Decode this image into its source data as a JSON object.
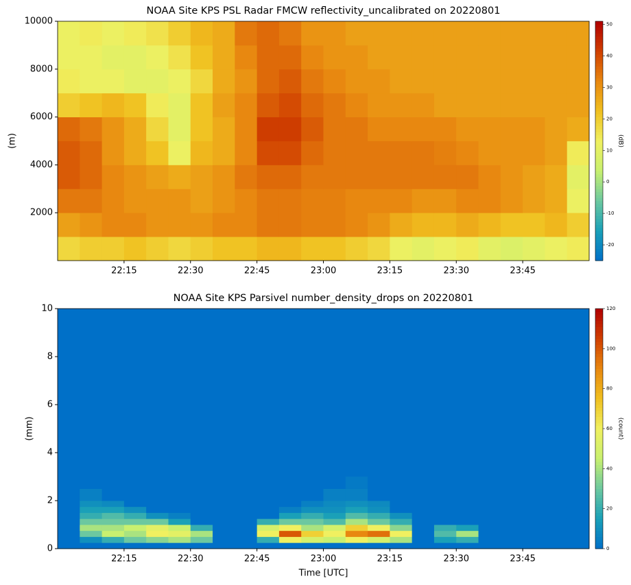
{
  "chart_data": [
    {
      "type": "heatmap",
      "title": "NOAA Site KPS PSL Radar FMCW reflectivity_uncalibrated on 20220801",
      "ylabel": "(m)",
      "x_bins": [
        0,
        5,
        10,
        15,
        20,
        25,
        30,
        35,
        40,
        45,
        50,
        55,
        60,
        65,
        70,
        75,
        80,
        85,
        90,
        95,
        100,
        105,
        110,
        115,
        120
      ],
      "y_bins": [
        0,
        1000,
        2000,
        3000,
        4000,
        5000,
        6000,
        7000,
        8000,
        9000,
        10000
      ],
      "values": [
        [
          18,
          20,
          20,
          22,
          20,
          18,
          20,
          22,
          22,
          24,
          24,
          22,
          22,
          20,
          18,
          12,
          10,
          12,
          14,
          10,
          8,
          10,
          12,
          14
        ],
        [
          28,
          30,
          32,
          32,
          30,
          30,
          30,
          32,
          32,
          34,
          34,
          33,
          33,
          32,
          30,
          26,
          24,
          24,
          26,
          24,
          22,
          22,
          24,
          20
        ],
        [
          34,
          34,
          32,
          30,
          30,
          30,
          28,
          30,
          32,
          34,
          34,
          33,
          33,
          32,
          32,
          32,
          30,
          30,
          32,
          32,
          30,
          28,
          26,
          12
        ],
        [
          38,
          36,
          32,
          30,
          28,
          26,
          28,
          30,
          34,
          36,
          36,
          34,
          34,
          34,
          34,
          34,
          34,
          34,
          34,
          32,
          30,
          28,
          26,
          10
        ],
        [
          38,
          36,
          30,
          26,
          22,
          12,
          24,
          26,
          32,
          40,
          40,
          36,
          34,
          34,
          34,
          34,
          34,
          33,
          32,
          30,
          30,
          30,
          28,
          14
        ],
        [
          36,
          34,
          30,
          26,
          18,
          10,
          22,
          26,
          32,
          42,
          42,
          38,
          34,
          34,
          32,
          32,
          32,
          32,
          30,
          30,
          30,
          30,
          28,
          26
        ],
        [
          20,
          22,
          24,
          22,
          14,
          10,
          22,
          28,
          32,
          38,
          40,
          36,
          34,
          32,
          30,
          30,
          30,
          28,
          28,
          28,
          28,
          28,
          28,
          28
        ],
        [
          14,
          12,
          12,
          10,
          10,
          12,
          18,
          26,
          30,
          36,
          38,
          34,
          32,
          30,
          30,
          28,
          28,
          28,
          28,
          28,
          28,
          28,
          28,
          28
        ],
        [
          12,
          12,
          10,
          10,
          12,
          16,
          22,
          26,
          32,
          36,
          36,
          32,
          30,
          30,
          28,
          28,
          28,
          28,
          28,
          28,
          28,
          28,
          28,
          28
        ],
        [
          12,
          14,
          12,
          14,
          16,
          20,
          24,
          26,
          34,
          36,
          34,
          30,
          30,
          28,
          28,
          28,
          28,
          28,
          28,
          28,
          28,
          28,
          28,
          28
        ]
      ],
      "xlim": [
        0,
        120
      ],
      "xticks": [
        {
          "value": 15,
          "label": "22:15"
        },
        {
          "value": 30,
          "label": "22:30"
        },
        {
          "value": 45,
          "label": "22:45"
        },
        {
          "value": 60,
          "label": "23:00"
        },
        {
          "value": 75,
          "label": "23:15"
        },
        {
          "value": 90,
          "label": "23:30"
        },
        {
          "value": 105,
          "label": "23:45"
        }
      ],
      "ylim": [
        0,
        10000
      ],
      "yticks": [
        2000,
        4000,
        6000,
        8000,
        10000
      ],
      "colorbar": {
        "label": "(dB)",
        "clim": [
          -25,
          51
        ],
        "ticks": [
          -20,
          -10,
          0,
          10,
          20,
          30,
          40,
          50
        ]
      },
      "colormap": [
        "#0070c8",
        "#1aa0b8",
        "#6cc8a0",
        "#c8f070",
        "#f0f060",
        "#f0c020",
        "#e88810",
        "#d04000",
        "#b00000"
      ]
    },
    {
      "type": "heatmap",
      "title": "NOAA Site KPS Parsivel number_density_drops on 20220801",
      "ylabel": "(mm)",
      "xlabel": "Time [UTC]",
      "x_bins": [
        0,
        5,
        10,
        15,
        20,
        25,
        30,
        35,
        40,
        45,
        50,
        55,
        60,
        65,
        70,
        75,
        80,
        85,
        90,
        95,
        100,
        105,
        110,
        115,
        120
      ],
      "y_bins": [
        0,
        0.25,
        0.5,
        0.75,
        1,
        1.25,
        1.5,
        1.75,
        2,
        2.5,
        3
      ],
      "values": [
        [
          0,
          0,
          0,
          0,
          0,
          0,
          0,
          0,
          0,
          0,
          0,
          0,
          0,
          0,
          0,
          0,
          0,
          0,
          0,
          0,
          0,
          0,
          0,
          0
        ],
        [
          0,
          10,
          20,
          30,
          35,
          40,
          30,
          0,
          0,
          20,
          60,
          50,
          45,
          60,
          50,
          40,
          0,
          15,
          20,
          0,
          0,
          0,
          0,
          0
        ],
        [
          0,
          30,
          45,
          40,
          60,
          55,
          40,
          0,
          0,
          60,
          100,
          70,
          60,
          90,
          95,
          60,
          0,
          25,
          40,
          0,
          0,
          0,
          0,
          0
        ],
        [
          0,
          40,
          40,
          45,
          55,
          45,
          20,
          0,
          0,
          50,
          60,
          40,
          50,
          70,
          60,
          35,
          0,
          20,
          15,
          0,
          0,
          0,
          0,
          0
        ],
        [
          0,
          30,
          30,
          30,
          30,
          15,
          0,
          0,
          0,
          20,
          30,
          30,
          25,
          40,
          30,
          20,
          0,
          0,
          0,
          0,
          0,
          0,
          0,
          0
        ],
        [
          0,
          20,
          25,
          20,
          10,
          5,
          0,
          0,
          0,
          0,
          15,
          20,
          15,
          25,
          20,
          10,
          0,
          0,
          0,
          0,
          0,
          0,
          0,
          0
        ],
        [
          0,
          15,
          15,
          10,
          0,
          0,
          0,
          0,
          0,
          0,
          5,
          10,
          10,
          15,
          10,
          0,
          0,
          0,
          0,
          0,
          0,
          0,
          0,
          0
        ],
        [
          0,
          10,
          8,
          0,
          0,
          0,
          0,
          0,
          0,
          0,
          0,
          5,
          8,
          10,
          8,
          0,
          0,
          0,
          0,
          0,
          0,
          0,
          0,
          0
        ],
        [
          0,
          5,
          0,
          0,
          0,
          0,
          0,
          0,
          0,
          0,
          0,
          0,
          5,
          5,
          0,
          0,
          0,
          0,
          0,
          0,
          0,
          0,
          0,
          0
        ],
        [
          0,
          0,
          0,
          0,
          0,
          0,
          0,
          0,
          0,
          0,
          0,
          0,
          0,
          3,
          0,
          0,
          0,
          0,
          0,
          0,
          0,
          0,
          0,
          0
        ]
      ],
      "xlim": [
        0,
        120
      ],
      "xticks": [
        {
          "value": 15,
          "label": "22:15"
        },
        {
          "value": 30,
          "label": "22:30"
        },
        {
          "value": 45,
          "label": "22:45"
        },
        {
          "value": 60,
          "label": "23:00"
        },
        {
          "value": 75,
          "label": "23:15"
        },
        {
          "value": 90,
          "label": "23:30"
        },
        {
          "value": 105,
          "label": "23:45"
        }
      ],
      "ylim": [
        0,
        10
      ],
      "yticks": [
        0,
        2,
        4,
        6,
        8,
        10
      ],
      "colorbar": {
        "label": "(count)",
        "clim": [
          0,
          120
        ],
        "ticks": [
          0,
          20,
          40,
          60,
          80,
          100,
          120
        ]
      },
      "colormap": [
        "#0070c8",
        "#1aa0b8",
        "#6cc8a0",
        "#c8f070",
        "#f0f060",
        "#f0c020",
        "#e88810",
        "#d04000",
        "#b00000"
      ]
    }
  ]
}
